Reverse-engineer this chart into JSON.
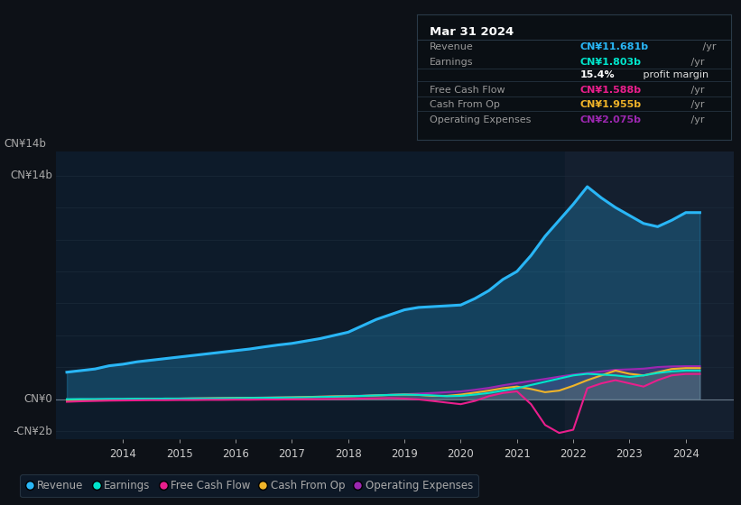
{
  "background_color": "#0d1117",
  "plot_bg_color": "#0d1b2a",
  "ylim": [
    -2.5,
    15.5
  ],
  "xlim": [
    2012.8,
    2024.85
  ],
  "x_ticks": [
    2014,
    2015,
    2016,
    2017,
    2018,
    2019,
    2020,
    2021,
    2022,
    2023,
    2024
  ],
  "revenue_color": "#29b6f6",
  "earnings_color": "#00e5cc",
  "fcf_color": "#e91e8c",
  "cashfromop_color": "#f0b429",
  "opex_color": "#9c27b0",
  "years": [
    2013.0,
    2013.25,
    2013.5,
    2013.75,
    2014.0,
    2014.25,
    2014.5,
    2014.75,
    2015.0,
    2015.25,
    2015.5,
    2015.75,
    2016.0,
    2016.25,
    2016.5,
    2016.75,
    2017.0,
    2017.25,
    2017.5,
    2017.75,
    2018.0,
    2018.25,
    2018.5,
    2018.75,
    2019.0,
    2019.25,
    2019.5,
    2019.75,
    2020.0,
    2020.25,
    2020.5,
    2020.75,
    2021.0,
    2021.25,
    2021.5,
    2021.75,
    2022.0,
    2022.25,
    2022.5,
    2022.75,
    2023.0,
    2023.25,
    2023.5,
    2023.75,
    2024.0,
    2024.25
  ],
  "revenue": [
    1.7,
    1.8,
    1.9,
    2.1,
    2.2,
    2.35,
    2.45,
    2.55,
    2.65,
    2.75,
    2.85,
    2.95,
    3.05,
    3.15,
    3.28,
    3.4,
    3.5,
    3.65,
    3.8,
    4.0,
    4.2,
    4.6,
    5.0,
    5.3,
    5.6,
    5.75,
    5.8,
    5.85,
    5.9,
    6.3,
    6.8,
    7.5,
    8.0,
    9.0,
    10.2,
    11.2,
    12.2,
    13.3,
    12.6,
    12.0,
    11.5,
    11.0,
    10.8,
    11.2,
    11.681,
    11.681
  ],
  "earnings": [
    0.01,
    0.02,
    0.02,
    0.03,
    0.03,
    0.04,
    0.04,
    0.05,
    0.05,
    0.06,
    0.06,
    0.07,
    0.08,
    0.09,
    0.1,
    0.11,
    0.12,
    0.13,
    0.15,
    0.17,
    0.2,
    0.22,
    0.25,
    0.28,
    0.3,
    0.28,
    0.25,
    0.2,
    0.22,
    0.3,
    0.4,
    0.55,
    0.7,
    0.9,
    1.1,
    1.3,
    1.5,
    1.6,
    1.55,
    1.5,
    1.4,
    1.5,
    1.65,
    1.75,
    1.803,
    1.803
  ],
  "fcf": [
    -0.15,
    -0.12,
    -0.1,
    -0.08,
    -0.07,
    -0.06,
    -0.05,
    -0.05,
    -0.04,
    -0.04,
    -0.03,
    -0.03,
    -0.02,
    -0.02,
    -0.01,
    -0.01,
    0.0,
    0.01,
    0.02,
    0.03,
    0.03,
    0.05,
    0.06,
    0.08,
    0.05,
    0.0,
    -0.1,
    -0.2,
    -0.3,
    -0.1,
    0.2,
    0.4,
    0.5,
    -0.3,
    -1.6,
    -2.1,
    -1.9,
    0.7,
    1.0,
    1.2,
    1.0,
    0.8,
    1.2,
    1.5,
    1.588,
    1.588
  ],
  "cashfromop": [
    -0.05,
    -0.04,
    -0.03,
    -0.01,
    0.0,
    0.02,
    0.03,
    0.05,
    0.05,
    0.06,
    0.07,
    0.08,
    0.09,
    0.1,
    0.11,
    0.12,
    0.13,
    0.15,
    0.17,
    0.19,
    0.2,
    0.22,
    0.25,
    0.28,
    0.3,
    0.28,
    0.22,
    0.22,
    0.3,
    0.42,
    0.55,
    0.7,
    0.8,
    0.65,
    0.45,
    0.55,
    0.85,
    1.2,
    1.5,
    1.8,
    1.6,
    1.5,
    1.7,
    1.9,
    1.955,
    1.955
  ],
  "opex": [
    0.0,
    0.01,
    0.01,
    0.02,
    0.02,
    0.03,
    0.03,
    0.04,
    0.05,
    0.06,
    0.07,
    0.08,
    0.09,
    0.1,
    0.11,
    0.12,
    0.13,
    0.15,
    0.17,
    0.19,
    0.21,
    0.23,
    0.26,
    0.29,
    0.32,
    0.36,
    0.4,
    0.45,
    0.5,
    0.6,
    0.72,
    0.88,
    1.02,
    1.15,
    1.28,
    1.42,
    1.55,
    1.65,
    1.75,
    1.85,
    1.88,
    1.92,
    2.02,
    2.06,
    2.075,
    2.075
  ],
  "tooltip": {
    "title": "Mar 31 2024",
    "rows": [
      {
        "label": "Revenue",
        "value": "CN¥11.681b",
        "suffix": " /yr",
        "color": "#29b6f6"
      },
      {
        "label": "Earnings",
        "value": "CN¥1.803b",
        "suffix": " /yr",
        "color": "#00e5cc"
      },
      {
        "label": "",
        "value": "15.4%",
        "suffix": " profit margin",
        "color": "#ffffff",
        "suffix_color": "#dddddd"
      },
      {
        "label": "Free Cash Flow",
        "value": "CN¥1.588b",
        "suffix": " /yr",
        "color": "#e91e8c"
      },
      {
        "label": "Cash From Op",
        "value": "CN¥1.955b",
        "suffix": " /yr",
        "color": "#f0b429"
      },
      {
        "label": "Operating Expenses",
        "value": "CN¥2.075b",
        "suffix": " /yr",
        "color": "#9c27b0"
      }
    ]
  },
  "legend": [
    {
      "label": "Revenue",
      "color": "#29b6f6"
    },
    {
      "label": "Earnings",
      "color": "#00e5cc"
    },
    {
      "label": "Free Cash Flow",
      "color": "#e91e8c"
    },
    {
      "label": "Cash From Op",
      "color": "#f0b429"
    },
    {
      "label": "Operating Expenses",
      "color": "#9c27b0"
    }
  ],
  "grid_color": "#1e2d3d",
  "zero_line_color": "#6a7a8a",
  "text_color": "#aaaaaa",
  "tick_color": "#cccccc",
  "shaded_region_start": 2021.85
}
